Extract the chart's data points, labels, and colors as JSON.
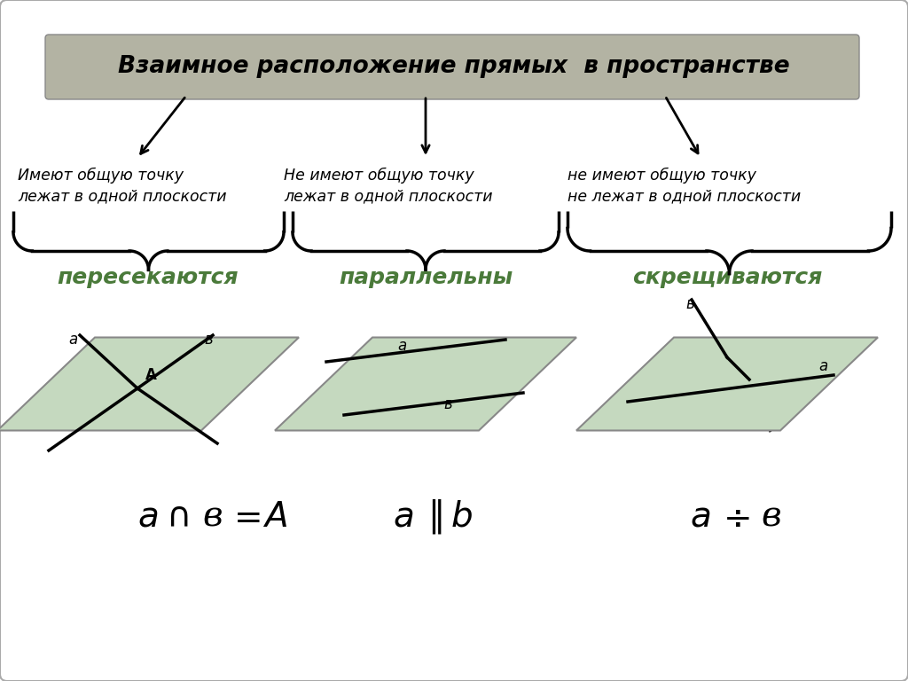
{
  "title": "Взаимное расположение прямых  в пространстве",
  "title_bg": "#b3b3a3",
  "bg_color": "#ffffff",
  "text1_line1": "Имеют общую точку",
  "text1_line2": "лежат в одной плоскости",
  "text2_line1": "Не имеют общую точку",
  "text2_line2": "лежат в одной плоскости",
  "text3_line1": "не имеют общую точку",
  "text3_line2": "не лежат в одной плоскости",
  "label1": "пересекаются",
  "label2": "параллельны",
  "label3": "скрещиваются",
  "green_text_color": "#4a7a3a",
  "plane_color": "#c5d9bf",
  "plane_edge_color": "#888888"
}
